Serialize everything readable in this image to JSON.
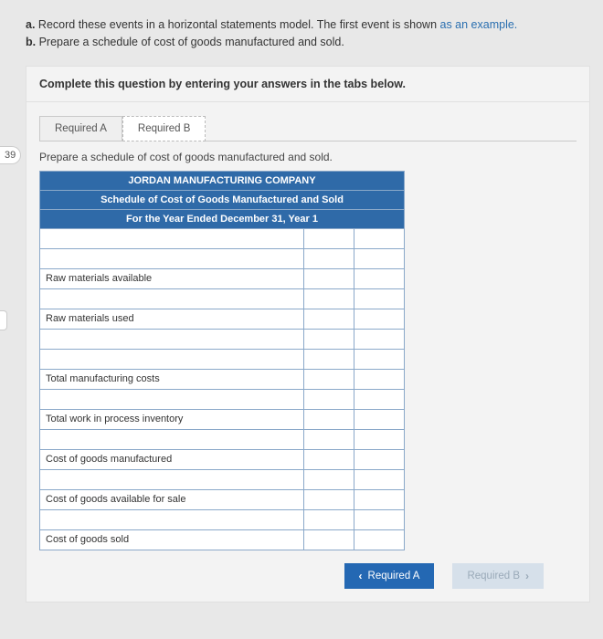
{
  "page_number": "39",
  "question": {
    "a_prefix": "a.",
    "a_text": "Record these events in a horizontal statements model. The first event is shown ",
    "a_example": "as an example.",
    "b_prefix": "b.",
    "b_text": "Prepare a schedule of cost of goods manufactured and sold."
  },
  "instruction": "Complete this question by entering your answers in the tabs below.",
  "tabs": {
    "a": "Required A",
    "b": "Required B"
  },
  "subinstruction": "Prepare a schedule of cost of goods manufactured and sold.",
  "schedule": {
    "header1": "JORDAN MANUFACTURING COMPANY",
    "header2": "Schedule of Cost of Goods Manufactured and Sold",
    "header3": "For the Year Ended December 31, Year 1",
    "rows": [
      {
        "label": "",
        "v1": "",
        "v2": ""
      },
      {
        "label": "",
        "v1": "",
        "v2": ""
      },
      {
        "label": "Raw materials available",
        "v1": "",
        "v2": ""
      },
      {
        "label": "",
        "v1": "",
        "v2": ""
      },
      {
        "label": "Raw materials used",
        "v1": "",
        "v2": ""
      },
      {
        "label": "",
        "v1": "",
        "v2": ""
      },
      {
        "label": "",
        "v1": "",
        "v2": ""
      },
      {
        "label": "Total manufacturing costs",
        "v1": "",
        "v2": ""
      },
      {
        "label": "",
        "v1": "",
        "v2": ""
      },
      {
        "label": "Total work in process inventory",
        "v1": "",
        "v2": ""
      },
      {
        "label": "",
        "v1": "",
        "v2": ""
      },
      {
        "label": "Cost of goods manufactured",
        "v1": "",
        "v2": ""
      },
      {
        "label": "",
        "v1": "",
        "v2": ""
      },
      {
        "label": "Cost of goods available for sale",
        "v1": "",
        "v2": ""
      },
      {
        "label": "",
        "v1": "",
        "v2": ""
      },
      {
        "label": "Cost of goods sold",
        "v1": "",
        "v2": ""
      }
    ]
  },
  "nav": {
    "prev": "Required A",
    "next": "Required B"
  },
  "colors": {
    "accent_blue": "#2f6aa8",
    "nav_blue": "#2468b3",
    "panel_bg": "#f3f3f3",
    "page_bg": "#e8e8e8"
  }
}
